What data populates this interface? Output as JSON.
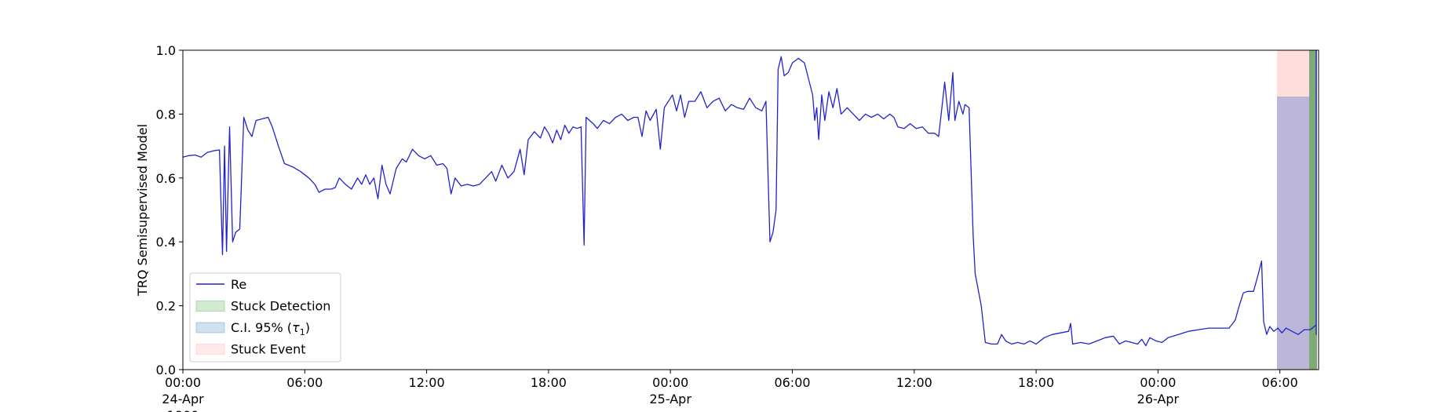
{
  "chart_data": {
    "type": "line",
    "title": "",
    "xlabel": "",
    "ylabel": "TRQ Semisupervised Model",
    "ylim": [
      0,
      1
    ],
    "xlim_hours": [
      0,
      55.5
    ],
    "grid": false,
    "legend_placement": "lower-left",
    "x_ticks": [
      {
        "hour": 0,
        "time": "00:00",
        "date": "24-Apr",
        "year": "1900"
      },
      {
        "hour": 6,
        "time": "06:00",
        "date": "",
        "year": ""
      },
      {
        "hour": 12,
        "time": "12:00",
        "date": "",
        "year": ""
      },
      {
        "hour": 18,
        "time": "18:00",
        "date": "",
        "year": ""
      },
      {
        "hour": 24,
        "time": "00:00",
        "date": "25-Apr",
        "year": ""
      },
      {
        "hour": 30,
        "time": "06:00",
        "date": "",
        "year": ""
      },
      {
        "hour": 36,
        "time": "12:00",
        "date": "",
        "year": ""
      },
      {
        "hour": 42,
        "time": "18:00",
        "date": "",
        "year": ""
      },
      {
        "hour": 48,
        "time": "00:00",
        "date": "26-Apr",
        "year": ""
      },
      {
        "hour": 54,
        "time": "06:00",
        "date": "",
        "year": ""
      }
    ],
    "y_ticks": [
      "0.0",
      "0.2",
      "0.4",
      "0.6",
      "0.8",
      "1.0"
    ],
    "legend": [
      {
        "label": "Re",
        "kind": "line",
        "color": "#2222cc"
      },
      {
        "label": "Stuck Detection",
        "kind": "patch",
        "color": "#2ca02c"
      },
      {
        "label": "C.I. 95% (",
        "tau": "τ",
        "sub": "1",
        "suffix": ")",
        "kind": "patch",
        "color": "#1f77b4"
      },
      {
        "label": "Stuck Event",
        "kind": "patch",
        "color": "#ff9999"
      }
    ],
    "regions": [
      {
        "name": "stuck-event",
        "x_start": 54.0,
        "x_end": 55.6,
        "y_start": 0.0,
        "y_end": 1.0,
        "color": "#ffdddd"
      },
      {
        "name": "ci-95",
        "x_start": 54.0,
        "x_end": 55.6,
        "y_start": 0.0,
        "y_end": 0.855,
        "color": "#b0b0d8"
      },
      {
        "name": "stuck-detection",
        "x_start": 55.6,
        "x_end": 56.0,
        "y_start": 0.0,
        "y_end": 1.0,
        "color": "#6a9a60"
      }
    ],
    "series": [
      {
        "name": "Re",
        "color": "#2222cc",
        "points": [
          [
            0.0,
            0.665
          ],
          [
            0.3,
            0.67
          ],
          [
            0.6,
            0.672
          ],
          [
            0.9,
            0.665
          ],
          [
            1.2,
            0.68
          ],
          [
            1.5,
            0.685
          ],
          [
            1.8,
            0.688
          ],
          [
            1.95,
            0.36
          ],
          [
            2.05,
            0.7
          ],
          [
            2.15,
            0.37
          ],
          [
            2.3,
            0.76
          ],
          [
            2.45,
            0.4
          ],
          [
            2.6,
            0.43
          ],
          [
            2.8,
            0.44
          ],
          [
            3.0,
            0.79
          ],
          [
            3.2,
            0.75
          ],
          [
            3.4,
            0.73
          ],
          [
            3.6,
            0.78
          ],
          [
            3.9,
            0.785
          ],
          [
            4.2,
            0.79
          ],
          [
            4.4,
            0.76
          ],
          [
            4.7,
            0.7
          ],
          [
            5.0,
            0.645
          ],
          [
            5.4,
            0.635
          ],
          [
            5.8,
            0.62
          ],
          [
            6.2,
            0.6
          ],
          [
            6.5,
            0.58
          ],
          [
            6.7,
            0.555
          ],
          [
            7.0,
            0.565
          ],
          [
            7.3,
            0.565
          ],
          [
            7.5,
            0.57
          ],
          [
            7.7,
            0.6
          ],
          [
            8.0,
            0.58
          ],
          [
            8.3,
            0.565
          ],
          [
            8.6,
            0.6
          ],
          [
            8.8,
            0.58
          ],
          [
            9.0,
            0.61
          ],
          [
            9.2,
            0.58
          ],
          [
            9.4,
            0.6
          ],
          [
            9.6,
            0.535
          ],
          [
            9.8,
            0.64
          ],
          [
            10.0,
            0.58
          ],
          [
            10.2,
            0.55
          ],
          [
            10.5,
            0.63
          ],
          [
            10.8,
            0.66
          ],
          [
            11.0,
            0.65
          ],
          [
            11.3,
            0.69
          ],
          [
            11.6,
            0.67
          ],
          [
            11.9,
            0.66
          ],
          [
            12.2,
            0.67
          ],
          [
            12.5,
            0.64
          ],
          [
            12.8,
            0.645
          ],
          [
            13.0,
            0.63
          ],
          [
            13.2,
            0.55
          ],
          [
            13.4,
            0.6
          ],
          [
            13.7,
            0.575
          ],
          [
            14.0,
            0.58
          ],
          [
            14.3,
            0.575
          ],
          [
            14.6,
            0.58
          ],
          [
            14.9,
            0.6
          ],
          [
            15.2,
            0.62
          ],
          [
            15.4,
            0.59
          ],
          [
            15.7,
            0.64
          ],
          [
            16.0,
            0.6
          ],
          [
            16.3,
            0.62
          ],
          [
            16.6,
            0.69
          ],
          [
            16.8,
            0.61
          ],
          [
            17.0,
            0.72
          ],
          [
            17.3,
            0.745
          ],
          [
            17.6,
            0.725
          ],
          [
            17.8,
            0.76
          ],
          [
            18.0,
            0.74
          ],
          [
            18.2,
            0.71
          ],
          [
            18.4,
            0.75
          ],
          [
            18.6,
            0.72
          ],
          [
            18.8,
            0.765
          ],
          [
            19.0,
            0.74
          ],
          [
            19.2,
            0.76
          ],
          [
            19.4,
            0.755
          ],
          [
            19.6,
            0.76
          ],
          [
            19.75,
            0.39
          ],
          [
            19.85,
            0.79
          ],
          [
            20.2,
            0.77
          ],
          [
            20.4,
            0.755
          ],
          [
            20.7,
            0.78
          ],
          [
            21.0,
            0.77
          ],
          [
            21.3,
            0.79
          ],
          [
            21.6,
            0.8
          ],
          [
            21.9,
            0.78
          ],
          [
            22.2,
            0.79
          ],
          [
            22.4,
            0.79
          ],
          [
            22.6,
            0.73
          ],
          [
            22.8,
            0.81
          ],
          [
            23.0,
            0.78
          ],
          [
            23.3,
            0.815
          ],
          [
            23.5,
            0.69
          ],
          [
            23.7,
            0.82
          ],
          [
            23.9,
            0.84
          ],
          [
            24.1,
            0.86
          ],
          [
            24.3,
            0.81
          ],
          [
            24.5,
            0.86
          ],
          [
            24.7,
            0.79
          ],
          [
            24.9,
            0.84
          ],
          [
            25.2,
            0.84
          ],
          [
            25.5,
            0.87
          ],
          [
            25.8,
            0.82
          ],
          [
            26.1,
            0.84
          ],
          [
            26.4,
            0.85
          ],
          [
            26.7,
            0.81
          ],
          [
            27.0,
            0.83
          ],
          [
            27.3,
            0.82
          ],
          [
            27.6,
            0.815
          ],
          [
            27.9,
            0.85
          ],
          [
            28.2,
            0.82
          ],
          [
            28.5,
            0.81
          ],
          [
            28.7,
            0.84
          ],
          [
            28.9,
            0.4
          ],
          [
            29.05,
            0.43
          ],
          [
            29.2,
            0.5
          ],
          [
            29.3,
            0.94
          ],
          [
            29.45,
            0.98
          ],
          [
            29.6,
            0.92
          ],
          [
            29.8,
            0.93
          ],
          [
            30.0,
            0.96
          ],
          [
            30.3,
            0.975
          ],
          [
            30.6,
            0.96
          ],
          [
            30.8,
            0.91
          ],
          [
            31.0,
            0.86
          ],
          [
            31.1,
            0.78
          ],
          [
            31.2,
            0.82
          ],
          [
            31.3,
            0.72
          ],
          [
            31.45,
            0.86
          ],
          [
            31.6,
            0.78
          ],
          [
            31.8,
            0.87
          ],
          [
            32.0,
            0.82
          ],
          [
            32.2,
            0.88
          ],
          [
            32.4,
            0.8
          ],
          [
            32.7,
            0.82
          ],
          [
            33.0,
            0.8
          ],
          [
            33.3,
            0.78
          ],
          [
            33.6,
            0.8
          ],
          [
            33.9,
            0.79
          ],
          [
            34.2,
            0.8
          ],
          [
            34.5,
            0.785
          ],
          [
            34.8,
            0.8
          ],
          [
            35.0,
            0.79
          ],
          [
            35.2,
            0.76
          ],
          [
            35.5,
            0.755
          ],
          [
            35.8,
            0.77
          ],
          [
            36.1,
            0.755
          ],
          [
            36.4,
            0.76
          ],
          [
            36.7,
            0.74
          ],
          [
            37.0,
            0.74
          ],
          [
            37.2,
            0.73
          ],
          [
            37.4,
            0.84
          ],
          [
            37.5,
            0.9
          ],
          [
            37.7,
            0.78
          ],
          [
            37.9,
            0.93
          ],
          [
            38.0,
            0.78
          ],
          [
            38.2,
            0.84
          ],
          [
            38.4,
            0.8
          ],
          [
            38.5,
            0.83
          ],
          [
            38.7,
            0.82
          ],
          [
            38.9,
            0.42
          ],
          [
            39.0,
            0.3
          ],
          [
            39.3,
            0.2
          ],
          [
            39.5,
            0.085
          ],
          [
            39.8,
            0.08
          ],
          [
            40.1,
            0.08
          ],
          [
            40.3,
            0.11
          ],
          [
            40.5,
            0.09
          ],
          [
            40.8,
            0.08
          ],
          [
            41.1,
            0.085
          ],
          [
            41.4,
            0.08
          ],
          [
            41.7,
            0.09
          ],
          [
            42.0,
            0.08
          ],
          [
            42.4,
            0.1
          ],
          [
            42.8,
            0.11
          ],
          [
            43.2,
            0.115
          ],
          [
            43.6,
            0.12
          ],
          [
            43.7,
            0.145
          ],
          [
            43.8,
            0.08
          ],
          [
            44.2,
            0.085
          ],
          [
            44.6,
            0.08
          ],
          [
            45.0,
            0.09
          ],
          [
            45.4,
            0.1
          ],
          [
            45.8,
            0.105
          ],
          [
            46.1,
            0.08
          ],
          [
            46.4,
            0.09
          ],
          [
            46.7,
            0.085
          ],
          [
            47.0,
            0.08
          ],
          [
            47.2,
            0.095
          ],
          [
            47.4,
            0.075
          ],
          [
            47.6,
            0.1
          ],
          [
            47.9,
            0.09
          ],
          [
            48.2,
            0.085
          ],
          [
            48.5,
            0.1
          ],
          [
            49.0,
            0.11
          ],
          [
            49.5,
            0.12
          ],
          [
            50.0,
            0.125
          ],
          [
            50.5,
            0.13
          ],
          [
            51.0,
            0.13
          ],
          [
            51.5,
            0.13
          ],
          [
            51.8,
            0.155
          ],
          [
            52.0,
            0.2
          ],
          [
            52.2,
            0.24
          ],
          [
            52.4,
            0.245
          ],
          [
            52.7,
            0.245
          ],
          [
            52.9,
            0.29
          ],
          [
            53.1,
            0.34
          ],
          [
            53.2,
            0.15
          ],
          [
            53.35,
            0.11
          ],
          [
            53.5,
            0.135
          ],
          [
            53.7,
            0.12
          ],
          [
            53.9,
            0.13
          ],
          [
            54.1,
            0.115
          ],
          [
            54.3,
            0.13
          ],
          [
            54.6,
            0.12
          ],
          [
            54.9,
            0.11
          ],
          [
            55.2,
            0.125
          ],
          [
            55.5,
            0.125
          ],
          [
            55.8,
            0.14
          ],
          [
            56.0,
            0.13
          ],
          [
            56.3,
            0.12
          ],
          [
            56.6,
            0.19
          ],
          [
            56.75,
            0.12
          ],
          [
            57.0,
            0.115
          ],
          [
            57.3,
            0.125
          ],
          [
            57.5,
            0.23
          ],
          [
            57.65,
            0.11
          ],
          [
            58.0,
            0.115
          ],
          [
            58.4,
            0.115
          ],
          [
            58.6,
            0.12
          ],
          [
            58.8,
            0.2
          ],
          [
            59.0,
            0.255
          ],
          [
            59.15,
            0.11
          ],
          [
            59.3,
            0.135
          ],
          [
            59.5,
            0.11
          ],
          [
            59.8,
            0.115
          ],
          [
            60.1,
            0.12
          ],
          [
            60.4,
            0.14
          ],
          [
            60.6,
            0.2
          ],
          [
            60.8,
            0.26
          ],
          [
            60.95,
            0.42
          ],
          [
            61.05,
            0.45
          ],
          [
            61.2,
            0.46
          ],
          [
            61.35,
            0.44
          ],
          [
            61.45,
            0.62
          ],
          [
            61.6,
            0.56
          ],
          [
            61.8,
            0.7
          ],
          [
            61.95,
            0.75
          ],
          [
            62.05,
            0.58
          ],
          [
            62.15,
            0.8
          ],
          [
            62.3,
            0.59
          ],
          [
            62.45,
            0.82
          ],
          [
            62.6,
            0.54
          ],
          [
            62.75,
            0.87
          ],
          [
            62.85,
            0.86
          ],
          [
            63.0,
            0.97
          ],
          [
            63.1,
            1.0
          ]
        ]
      }
    ]
  }
}
